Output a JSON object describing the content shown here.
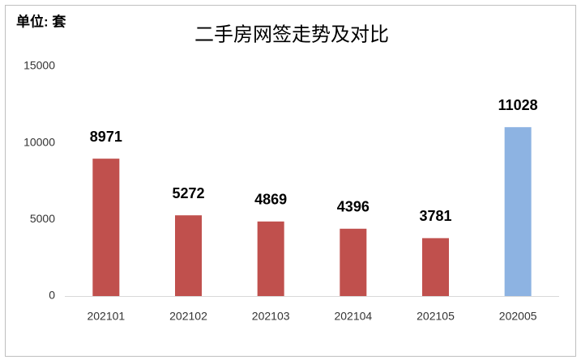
{
  "chart_data": {
    "type": "bar",
    "title": "二手房网签走势及对比",
    "unit_label": "单位: 套",
    "categories": [
      "202101",
      "202102",
      "202103",
      "202104",
      "202105",
      "202005"
    ],
    "values": [
      8971,
      5272,
      4869,
      4396,
      3781,
      11028
    ],
    "colors": [
      "#c0504d",
      "#c0504d",
      "#c0504d",
      "#c0504d",
      "#c0504d",
      "#8db3e2"
    ],
    "ylim": [
      0,
      15000
    ],
    "yticks": [
      0,
      5000,
      10000,
      15000
    ],
    "grid": false
  }
}
